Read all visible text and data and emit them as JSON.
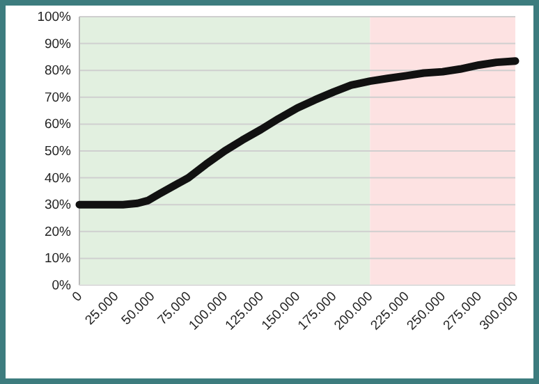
{
  "chart_data": {
    "type": "line",
    "x": [
      0,
      15000,
      30000,
      40000,
      47000,
      55000,
      65000,
      75000,
      87000,
      100000,
      112000,
      125000,
      137000,
      150000,
      162000,
      175000,
      187000,
      200000,
      212000,
      225000,
      237000,
      250000,
      262000,
      275000,
      287000,
      300000
    ],
    "series": [
      {
        "color": "#111111",
        "values": [
          30,
          30,
          30,
          30.5,
          31.5,
          34,
          37,
          40,
          45,
          50,
          54,
          58,
          62,
          66,
          69,
          72,
          74.5,
          76,
          77,
          78,
          79,
          79.5,
          80.5,
          82,
          83,
          83.5
        ]
      }
    ],
    "xlim": [
      0,
      300000
    ],
    "xticks": [
      0,
      {
        "value": 25000,
        "label": "25.000"
      },
      {
        "value": 50000,
        "label": "50.000"
      },
      {
        "value": 75000,
        "label": "75.000"
      },
      {
        "value": 100000,
        "label": "100.000"
      },
      {
        "value": 125000,
        "label": "125.000"
      },
      {
        "value": 150000,
        "label": "150.000"
      },
      {
        "value": 175000,
        "label": "175.000"
      },
      {
        "value": 200000,
        "label": "200.000"
      },
      {
        "value": 225000,
        "label": "225.000"
      },
      {
        "value": 250000,
        "label": "250.000"
      },
      {
        "value": 275000,
        "label": "275.000"
      },
      {
        "value": 300000,
        "label": "300.000"
      }
    ],
    "ylim": [
      0,
      100
    ],
    "yticks": [
      {
        "value": 0,
        "label": "0%"
      },
      {
        "value": 10,
        "label": "10%"
      },
      {
        "value": 20,
        "label": "20%"
      },
      {
        "value": 30,
        "label": "30%"
      },
      {
        "value": 40,
        "label": "40%"
      },
      {
        "value": 50,
        "label": "50%"
      },
      {
        "value": 60,
        "label": "60%"
      },
      {
        "value": 70,
        "label": "70%"
      },
      {
        "value": 80,
        "label": "80%"
      },
      {
        "value": 90,
        "label": "90%"
      },
      {
        "value": 100,
        "label": "100%"
      }
    ],
    "bands": [
      {
        "axis": "x",
        "from": 0,
        "to": 200000,
        "color": "#e2f0e0"
      },
      {
        "axis": "x",
        "from": 200000,
        "to": 300000,
        "color": "#fde2e2"
      }
    ],
    "grid": "y",
    "marker": "none",
    "line_style": "solid"
  }
}
